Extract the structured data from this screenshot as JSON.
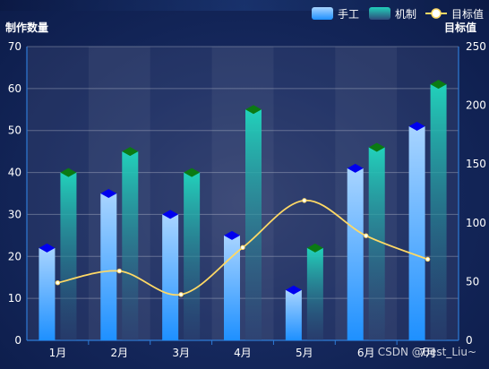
{
  "chart_data": {
    "type": "bar",
    "categories": [
      "1月",
      "2月",
      "3月",
      "4月",
      "5月",
      "6月",
      "7月"
    ],
    "y_left": {
      "label": "制作数量",
      "ylim": [
        0,
        70
      ],
      "ticks": [
        0,
        10,
        20,
        30,
        40,
        50,
        60,
        70
      ]
    },
    "y_right": {
      "label": "目标值",
      "ylim": [
        0,
        250
      ],
      "ticks": [
        0,
        50,
        100,
        150,
        200,
        250
      ]
    },
    "series": [
      {
        "name": "手工",
        "kind": "bar",
        "axis": "left",
        "values": [
          22,
          35,
          30,
          25,
          12,
          41,
          51
        ],
        "color": "#1e90ff",
        "color_top": "#a8d4ff",
        "cap_color": "#0000ee"
      },
      {
        "name": "机制",
        "kind": "bar",
        "axis": "left",
        "values": [
          40,
          45,
          40,
          55,
          22,
          46,
          61
        ],
        "color": "#22d1bb",
        "color_bottom": "#2e4a7a",
        "cap_color": "#0b7a14"
      },
      {
        "name": "目标值",
        "kind": "line",
        "axis": "right",
        "smooth": true,
        "values": [
          49,
          59,
          39,
          79,
          119,
          89,
          69
        ],
        "color": "#ffd965"
      }
    ],
    "grid": true,
    "legend_position": "top-right"
  },
  "watermark": "CSDN @Best_Liu~"
}
